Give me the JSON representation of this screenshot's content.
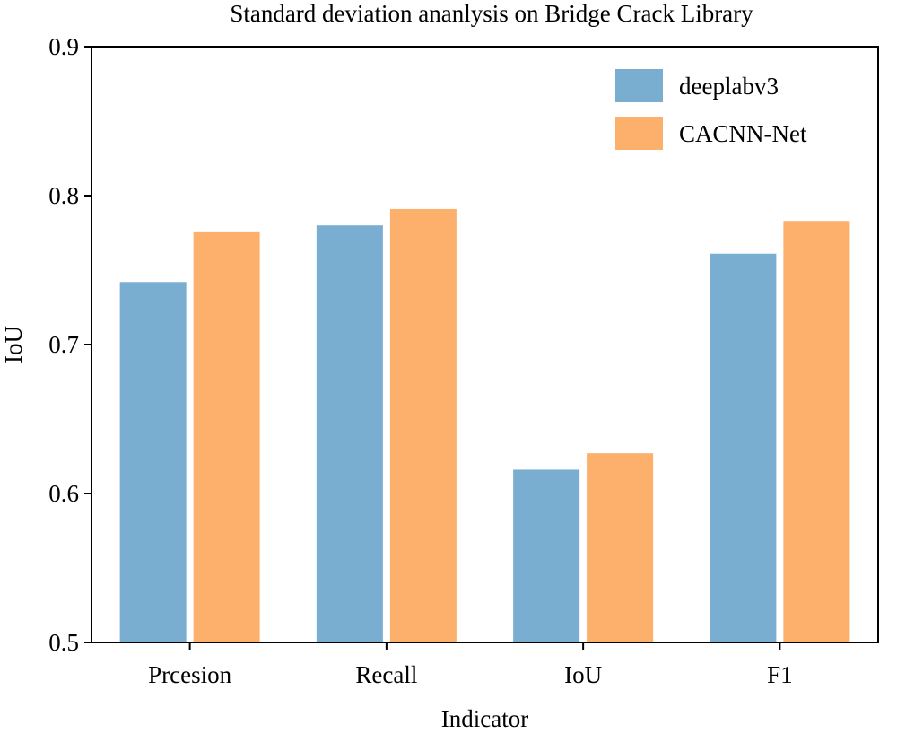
{
  "chart_data": {
    "type": "bar",
    "title": "Standard deviation ananlysis on Bridge Crack Library",
    "xlabel": "Indicator",
    "ylabel": "IoU",
    "categories": [
      "Prcesion",
      "Recall",
      "IoU",
      "F1"
    ],
    "ylim": [
      0.5,
      0.9
    ],
    "yticks": [
      "0.5",
      "0.6",
      "0.7",
      "0.8",
      "0.9"
    ],
    "grid": false,
    "legend_position": "top-right",
    "series": [
      {
        "name": "deeplabv3",
        "color": "#7aaed1",
        "values": [
          0.742,
          0.78,
          0.616,
          0.761
        ]
      },
      {
        "name": "CACNN-Net",
        "color": "#fdaf6c",
        "values": [
          0.776,
          0.791,
          0.627,
          0.783
        ]
      }
    ]
  }
}
